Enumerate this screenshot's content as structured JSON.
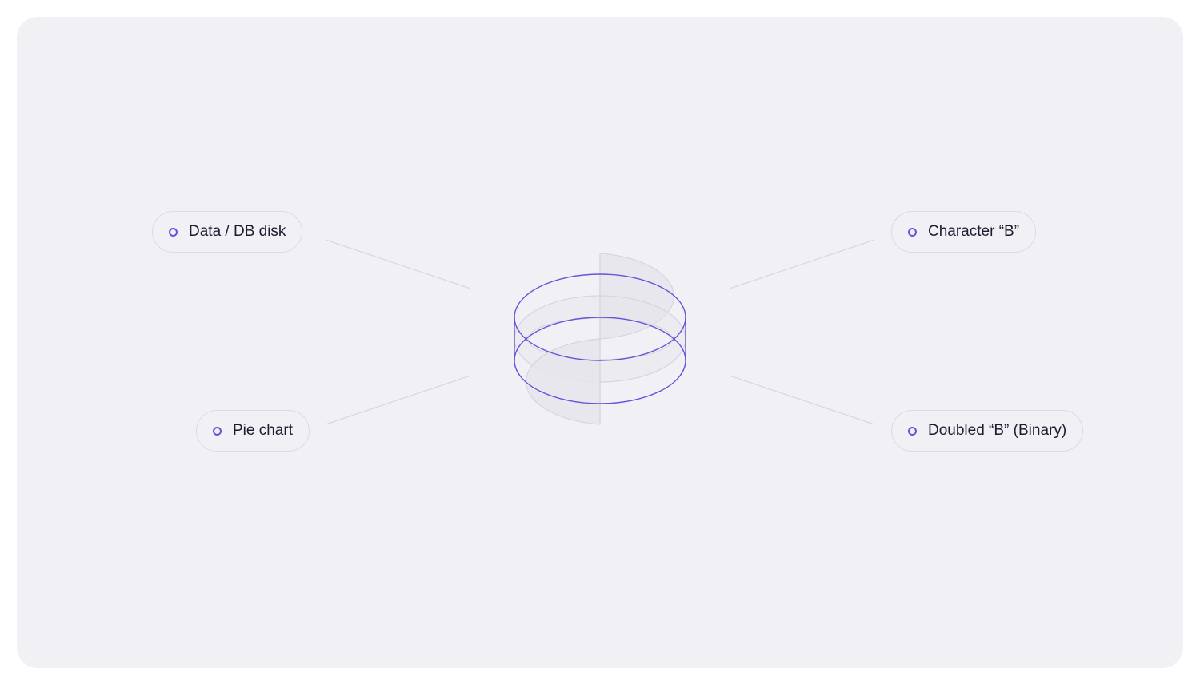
{
  "labels": {
    "top_left": "Data / DB disk",
    "bottom_left": "Pie chart",
    "top_right": "Character “B”",
    "bottom_right": "Doubled “B” (Binary)"
  },
  "colors": {
    "accent": "#6a52d9",
    "background": "#f1f0f5",
    "connector": "#d8d7de",
    "ribbon": "#e4e3ea"
  },
  "icons": {
    "bullet": "circle-outline-icon"
  }
}
